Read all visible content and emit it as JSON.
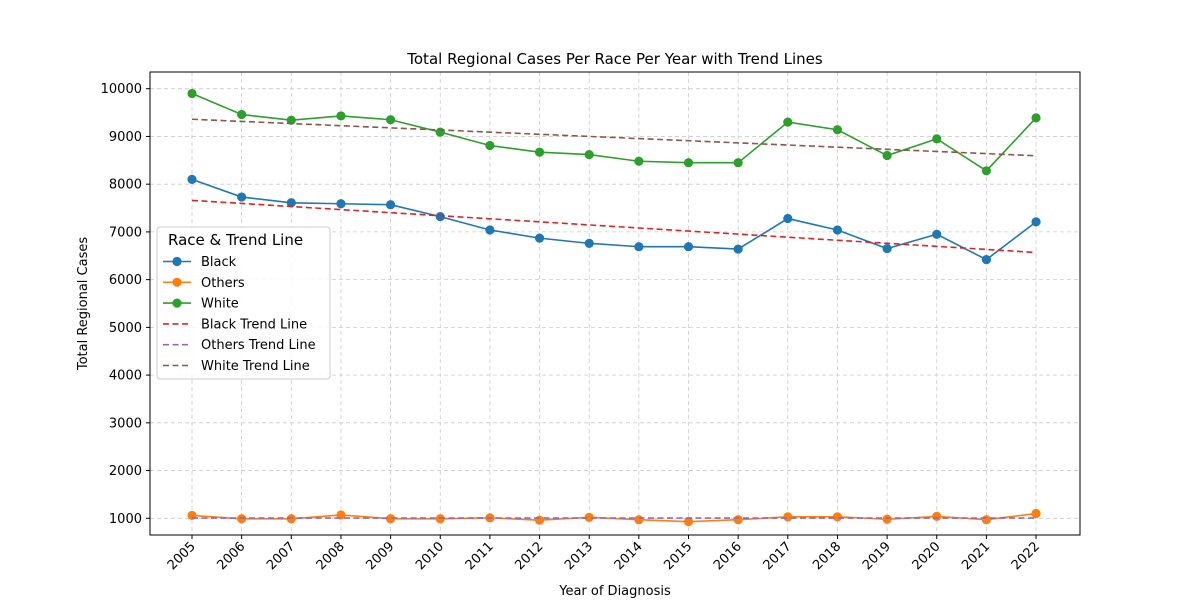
{
  "chart_data": {
    "type": "line",
    "title": "Total Regional Cases Per Race Per Year with Trend Lines",
    "xlabel": "Year of Diagnosis",
    "ylabel": "Total Regional Cases",
    "x": [
      "2005",
      "2006",
      "2007",
      "2008",
      "2009",
      "2010",
      "2011",
      "2012",
      "2013",
      "2014",
      "2015",
      "2016",
      "2017",
      "2018",
      "2019",
      "2020",
      "2021",
      "2022"
    ],
    "yticks": [
      "1000",
      "2000",
      "3000",
      "4000",
      "5000",
      "6000",
      "7000",
      "8000",
      "9000",
      "10000"
    ],
    "ylim": [
      650,
      10350
    ],
    "grid": true,
    "legend": {
      "title": "Race & Trend Line",
      "placement": "center-left"
    },
    "series": [
      {
        "name": "Black",
        "style": "line-marker",
        "color": "#1f77b4",
        "values": [
          8100,
          7730,
          7610,
          7590,
          7570,
          7320,
          7040,
          6870,
          6760,
          6690,
          6690,
          6640,
          7280,
          7040,
          6650,
          6950,
          6420,
          7210
        ]
      },
      {
        "name": "Others",
        "style": "line-marker",
        "color": "#ff7f0e",
        "values": [
          1060,
          990,
          990,
          1070,
          990,
          990,
          1010,
          960,
          1020,
          970,
          930,
          970,
          1030,
          1030,
          980,
          1040,
          970,
          1100
        ]
      },
      {
        "name": "White",
        "style": "line-marker",
        "color": "#2ca02c",
        "values": [
          9900,
          9460,
          9340,
          9430,
          9350,
          9090,
          8810,
          8670,
          8620,
          8480,
          8450,
          8450,
          9300,
          9140,
          8600,
          8950,
          8280,
          9390
        ]
      },
      {
        "name": "Black Trend Line",
        "style": "dashed",
        "color": "#d62728",
        "values": [
          7660,
          7596,
          7532,
          7467,
          7403,
          7339,
          7275,
          7211,
          7146,
          7082,
          7018,
          6954,
          6889,
          6825,
          6761,
          6697,
          6633,
          6568
        ]
      },
      {
        "name": "Others Trend Line",
        "style": "dashed",
        "color": "#9467bd",
        "values": [
          1005,
          1005,
          1005,
          1005,
          1005,
          1005,
          1005,
          1005,
          1005,
          1005,
          1005,
          1005,
          1005,
          1005,
          1005,
          1005,
          1005,
          1005
        ]
      },
      {
        "name": "White Trend Line",
        "style": "dashed",
        "color": "#8c564b",
        "values": [
          9360,
          9315,
          9270,
          9225,
          9180,
          9135,
          9090,
          9045,
          9000,
          8955,
          8910,
          8865,
          8820,
          8775,
          8730,
          8685,
          8640,
          8595
        ]
      }
    ]
  }
}
